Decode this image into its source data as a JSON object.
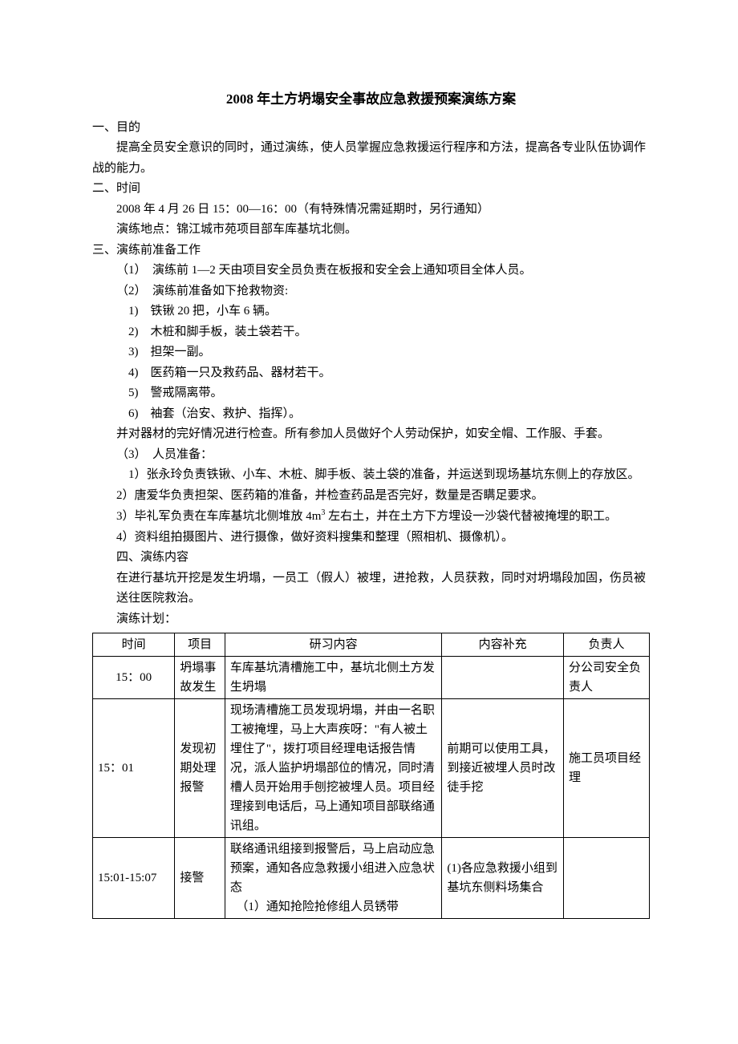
{
  "title": "2008 年土方坍塌安全事故应急救援预案演练方案",
  "s1_header": "一、目的",
  "s1_body": "提高全员安全意识的同时，通过演练，使人员掌握应急救援运行程序和方法，提高各专业队伍协调作战的能力。",
  "s2_header": "二、时间",
  "s2_line1": "2008 年 4 月 26 日 15：00—16：00（有特殊情况需延期时，另行通知）",
  "s2_line2": "演练地点：锦江城市苑项目部车库基坑北侧。",
  "s3_header": "三、演练前准备工作",
  "s3_item1": "（1）　演练前 1—2 天由项目安全员负责在板报和安全会上通知项目全体人员。",
  "s3_item2": "（2）　演练前准备如下抢救物资:",
  "s3_sub1": "1)　铁锹 20 把，小车 6 辆。",
  "s3_sub2": "2)　木桩和脚手板，装土袋若干。",
  "s3_sub3": "3)　担架一副。",
  "s3_sub4": "4)　医药箱一只及救药品、器材若干。",
  "s3_sub5": "5)　警戒隔离带。",
  "s3_sub6": "6)　袖套（治安、救护、指挥）。",
  "s3_check": "并对器材的完好情况进行检查。所有参加人员做好个人劳动保护，如安全帽、工作服、手套。",
  "s3_item3": "（3）　人员准备：",
  "s3_p1": "1）张永玲负责铁锹、小车、木桩、脚手板、装土袋的准备，并运送到现场基坑东侧上的存放区。",
  "s3_p2": "2）唐爱华负责担架、医药箱的准备，并检查药品是否完好，数量是否瞒足要求。",
  "s3_p3_a": "3）毕礼军负责在车库基坑北侧堆放 4m",
  "s3_p3_b": "左右土，并在土方下方埋设一沙袋代替被掩埋的职工。",
  "s3_p4": "4）资料组拍摄图片、进行摄像，做好资料搜集和整理（照相机、摄像机）。",
  "s4_header": "四、演练内容",
  "s4_body": "在进行基坑开挖是发生坍塌，一员工（假人）被埋，进抢救，人员获救，同时对坍塌段加固，伤员被送往医院救治。",
  "s4_plan": "演练计划：",
  "th_time": "时间",
  "th_proj": "项目",
  "th_content": "研习内容",
  "th_supp": "内容补充",
  "th_person": "负责人",
  "r1_time": "15：00",
  "r1_proj": "坍塌事故发生",
  "r1_content": "车库基坑清槽施工中，基坑北侧土方发生坍塌",
  "r1_supp": "",
  "r1_person": "分公司安全负责人",
  "r2_time": "15：01",
  "r2_proj": "发现初期处理报警",
  "r2_content": "现场清槽施工员发现坍塌，并由一名职工被掩埋，马上大声疾呀：\"有人被土埋住了\"，拨打项目经理电话报告情况，派人监护坍塌部位的情况，同时清槽人员开始用手刨挖被埋人员。项目经理接到电话后，马上通知项目部联络通讯组。",
  "r2_supp": "前期可以使用工具，到接近被埋人员时改徒手挖",
  "r2_person": "施工员项目经理",
  "r3_time": "15:01-15:07",
  "r3_proj": "接警",
  "r3_content": "联络通讯组接到报警后，马上启动应急预案，通知各应急救援小组进入应急状态\n　（1）通知抢险抢修组人员锈带",
  "r3_supp": "(1)各应急救援小组到基坑东侧料场集合",
  "r3_person": ""
}
